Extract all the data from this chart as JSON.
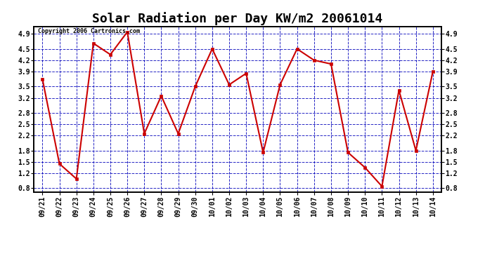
{
  "title": "Solar Radiation per Day KW/m2 20061014",
  "copyright_text": "Copyright 2006 Cartronics.com",
  "labels": [
    "09/21",
    "09/22",
    "09/23",
    "09/24",
    "09/25",
    "09/26",
    "09/27",
    "09/28",
    "09/29",
    "09/30",
    "10/01",
    "10/02",
    "10/03",
    "10/04",
    "10/05",
    "10/06",
    "10/07",
    "10/08",
    "10/09",
    "10/10",
    "10/11",
    "10/12",
    "10/13",
    "10/14"
  ],
  "values": [
    3.7,
    1.45,
    1.05,
    4.65,
    4.35,
    4.95,
    2.25,
    3.25,
    2.25,
    3.5,
    4.5,
    3.55,
    3.85,
    1.75,
    3.55,
    4.5,
    4.2,
    4.1,
    1.75,
    1.35,
    0.85,
    3.4,
    1.8,
    3.9
  ],
  "line_color": "#cc0000",
  "marker_color": "#cc0000",
  "bg_color": "#ffffff",
  "plot_bg_color": "#ffffff",
  "grid_color": "#0000bb",
  "ylim_min": 0.7,
  "ylim_max": 5.1,
  "yticks": [
    0.8,
    1.2,
    1.5,
    1.8,
    2.2,
    2.5,
    2.8,
    3.2,
    3.5,
    3.9,
    4.2,
    4.5,
    4.9
  ],
  "title_fontsize": 13,
  "tick_fontsize": 7,
  "copyright_fontsize": 6
}
